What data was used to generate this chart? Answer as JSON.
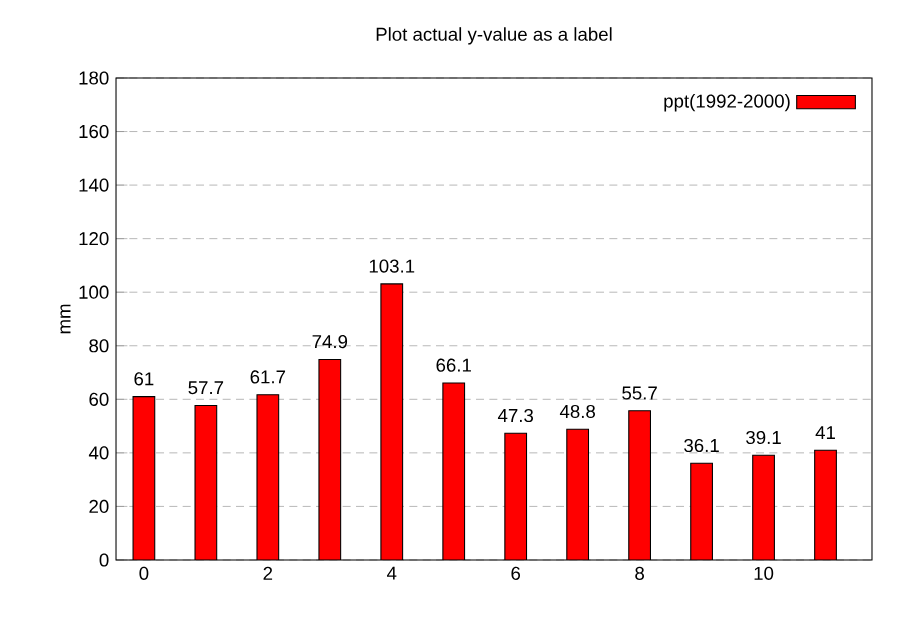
{
  "chart_data": {
    "type": "bar",
    "title": "Plot actual y-value as a label",
    "ylabel": "mm",
    "x": [
      0,
      1,
      2,
      3,
      4,
      5,
      6,
      7,
      8,
      9,
      10,
      11
    ],
    "series": [
      {
        "name": "ppt(1992-2000)",
        "color": "#ff0000",
        "values": [
          61,
          57.7,
          61.7,
          74.9,
          103.1,
          66.1,
          47.3,
          48.8,
          55.7,
          36.1,
          39.1,
          41
        ]
      }
    ],
    "xlim": [
      -0.45,
      11.75
    ],
    "xticks": [
      0,
      2,
      4,
      6,
      8,
      10
    ],
    "ylim": [
      0,
      180
    ],
    "yticks": [
      0,
      20,
      40,
      60,
      80,
      100,
      120,
      140,
      160,
      180
    ],
    "grid": "y",
    "legend": "top right",
    "data_labels": true
  }
}
